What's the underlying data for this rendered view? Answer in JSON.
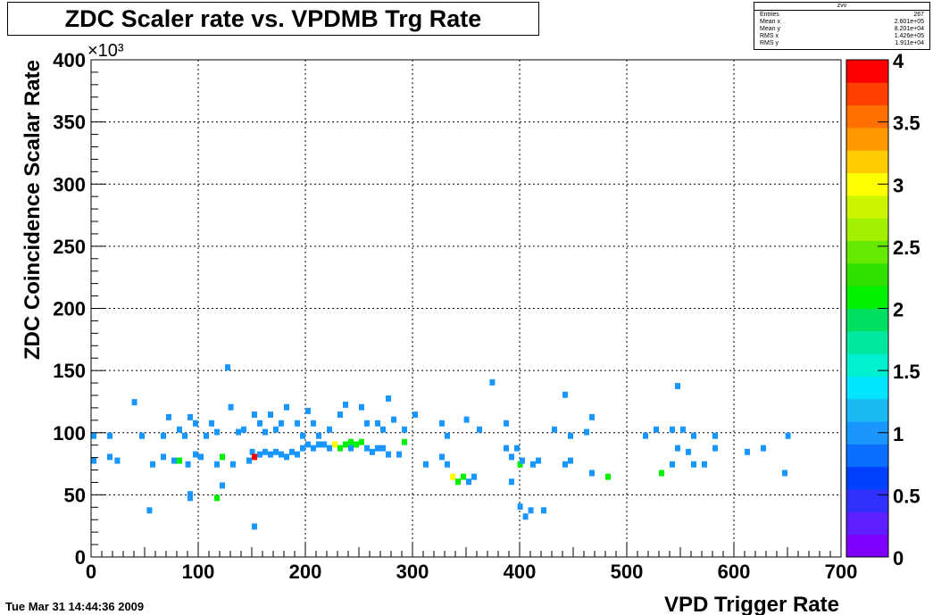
{
  "chart_data": {
    "type": "heatmap",
    "title": "ZDC Scaler rate vs. VPDMB Trg Rate",
    "xlabel": "VPD Trigger Rate",
    "ylabel": "ZDC Coincidence Scalar Rate",
    "y_multiplier": "×10³",
    "xlim": [
      0,
      700
    ],
    "ylim": [
      0,
      400000
    ],
    "x_ticks": [
      "0",
      "100",
      "200",
      "300",
      "400",
      "500",
      "600",
      "700"
    ],
    "y_ticks": [
      "0",
      "50",
      "100",
      "150",
      "200",
      "250",
      "300",
      "350",
      "400"
    ],
    "grid": true,
    "bin_width_x": 5,
    "bin_height_y": 5000,
    "z_range": [
      0,
      4
    ],
    "z_ticks": [
      "0",
      "0.5",
      "1",
      "1.5",
      "2",
      "2.5",
      "3",
      "3.5",
      "4"
    ],
    "palette": [
      "#7f00ff",
      "#5f20ff",
      "#3030ff",
      "#0040ff",
      "#0a6fff",
      "#1a96ff",
      "#18b8f2",
      "#00e4ff",
      "#00f0d0",
      "#00e8a0",
      "#00e060",
      "#00f000",
      "#30e000",
      "#66e800",
      "#a0f000",
      "#ccf400",
      "#ffff00",
      "#ffcc00",
      "#ff9900",
      "#ff7000",
      "#ff4000",
      "#ff0000"
    ],
    "bins": [
      [
        150,
        22000,
        1
      ],
      [
        52,
        35000,
        1
      ],
      [
        90,
        48000,
        1
      ],
      [
        90,
        45000,
        1
      ],
      [
        120,
        55000,
        1
      ],
      [
        115,
        45000,
        2
      ],
      [
        398,
        38000,
        1
      ],
      [
        403,
        30000,
        1
      ],
      [
        408,
        35000,
        1
      ],
      [
        420,
        35000,
        1
      ],
      [
        0,
        75000,
        1
      ],
      [
        15,
        78000,
        1
      ],
      [
        22,
        75000,
        1
      ],
      [
        55,
        72000,
        1
      ],
      [
        65,
        78000,
        1
      ],
      [
        75,
        75000,
        1
      ],
      [
        80,
        75000,
        2
      ],
      [
        88,
        72000,
        1
      ],
      [
        95,
        80000,
        1
      ],
      [
        100,
        78000,
        1
      ],
      [
        115,
        72000,
        1
      ],
      [
        120,
        78000,
        2
      ],
      [
        130,
        72000,
        1
      ],
      [
        145,
        75000,
        1
      ],
      [
        148,
        82000,
        1
      ],
      [
        150,
        78000,
        4
      ],
      [
        155,
        80000,
        1
      ],
      [
        160,
        82000,
        1
      ],
      [
        165,
        80000,
        1
      ],
      [
        170,
        82000,
        1
      ],
      [
        175,
        80000,
        1
      ],
      [
        180,
        78000,
        1
      ],
      [
        185,
        82000,
        1
      ],
      [
        190,
        80000,
        1
      ],
      [
        195,
        85000,
        1
      ],
      [
        200,
        88000,
        1
      ],
      [
        205,
        85000,
        1
      ],
      [
        210,
        88000,
        1
      ],
      [
        215,
        88000,
        1
      ],
      [
        220,
        85000,
        1
      ],
      [
        225,
        88000,
        3
      ],
      [
        230,
        85000,
        2
      ],
      [
        235,
        88000,
        2
      ],
      [
        240,
        90000,
        2
      ],
      [
        245,
        88000,
        2
      ],
      [
        250,
        90000,
        2
      ],
      [
        255,
        85000,
        1
      ],
      [
        260,
        82000,
        1
      ],
      [
        265,
        85000,
        1
      ],
      [
        270,
        85000,
        1
      ],
      [
        275,
        80000,
        1
      ],
      [
        285,
        80000,
        1
      ],
      [
        290,
        90000,
        2
      ],
      [
        310,
        72000,
        1
      ],
      [
        325,
        78000,
        1
      ],
      [
        330,
        72000,
        1
      ],
      [
        335,
        62000,
        3
      ],
      [
        340,
        58000,
        2
      ],
      [
        345,
        62000,
        2
      ],
      [
        350,
        58000,
        1
      ],
      [
        355,
        62000,
        1
      ],
      [
        385,
        85000,
        1
      ],
      [
        390,
        78000,
        1
      ],
      [
        395,
        85000,
        1
      ],
      [
        398,
        72000,
        2
      ],
      [
        390,
        58000,
        1
      ],
      [
        400,
        75000,
        1
      ],
      [
        410,
        72000,
        1
      ],
      [
        415,
        75000,
        1
      ],
      [
        440,
        72000,
        1
      ],
      [
        445,
        75000,
        1
      ],
      [
        465,
        65000,
        1
      ],
      [
        480,
        62000,
        2
      ],
      [
        530,
        65000,
        2
      ],
      [
        540,
        72000,
        1
      ],
      [
        545,
        85000,
        1
      ],
      [
        555,
        82000,
        1
      ],
      [
        560,
        72000,
        1
      ],
      [
        570,
        72000,
        1
      ],
      [
        580,
        85000,
        1
      ],
      [
        610,
        82000,
        1
      ],
      [
        625,
        85000,
        1
      ],
      [
        645,
        65000,
        1
      ],
      [
        0,
        95000,
        1
      ],
      [
        15,
        95000,
        1
      ],
      [
        38,
        122000,
        1
      ],
      [
        45,
        95000,
        1
      ],
      [
        65,
        95000,
        1
      ],
      [
        70,
        110000,
        1
      ],
      [
        80,
        100000,
        1
      ],
      [
        85,
        95000,
        1
      ],
      [
        105,
        95000,
        1
      ],
      [
        110,
        105000,
        1
      ],
      [
        115,
        98000,
        1
      ],
      [
        125,
        150000,
        1
      ],
      [
        128,
        118000,
        1
      ],
      [
        135,
        98000,
        1
      ],
      [
        140,
        100000,
        1
      ],
      [
        150,
        112000,
        1
      ],
      [
        155,
        105000,
        1
      ],
      [
        160,
        98000,
        1
      ],
      [
        165,
        112000,
        1
      ],
      [
        170,
        100000,
        1
      ],
      [
        175,
        105000,
        1
      ],
      [
        180,
        118000,
        1
      ],
      [
        190,
        105000,
        1
      ],
      [
        195,
        95000,
        1
      ],
      [
        200,
        115000,
        1
      ],
      [
        205,
        105000,
        1
      ],
      [
        210,
        95000,
        1
      ],
      [
        220,
        100000,
        1
      ],
      [
        230,
        112000,
        1
      ],
      [
        235,
        120000,
        1
      ],
      [
        250,
        118000,
        1
      ],
      [
        255,
        105000,
        1
      ],
      [
        265,
        105000,
        1
      ],
      [
        270,
        100000,
        1
      ],
      [
        275,
        125000,
        1
      ],
      [
        280,
        108000,
        1
      ],
      [
        290,
        100000,
        1
      ],
      [
        300,
        112000,
        1
      ],
      [
        325,
        105000,
        1
      ],
      [
        330,
        95000,
        1
      ],
      [
        348,
        108000,
        1
      ],
      [
        360,
        100000,
        1
      ],
      [
        372,
        138000,
        1
      ],
      [
        385,
        105000,
        1
      ],
      [
        430,
        100000,
        1
      ],
      [
        440,
        128000,
        1
      ],
      [
        445,
        95000,
        1
      ],
      [
        460,
        98000,
        1
      ],
      [
        465,
        110000,
        1
      ],
      [
        515,
        95000,
        1
      ],
      [
        525,
        100000,
        1
      ],
      [
        540,
        100000,
        1
      ],
      [
        545,
        135000,
        1
      ],
      [
        550,
        100000,
        1
      ],
      [
        560,
        95000,
        1
      ],
      [
        580,
        95000,
        1
      ],
      [
        648,
        95000,
        1
      ],
      [
        90,
        110000,
        1
      ],
      [
        95,
        105000,
        1
      ],
      [
        240,
        85000,
        1
      ]
    ]
  },
  "stats_box": {
    "title": "zvv",
    "rows": [
      {
        "label": "Entries",
        "value": "267"
      },
      {
        "label": "Mean x",
        "value": "2.601e+05"
      },
      {
        "label": "Mean y",
        "value": "8.201e+04"
      },
      {
        "label": "RMS x",
        "value": "1.426e+05"
      },
      {
        "label": "RMS y",
        "value": "1.911e+04"
      }
    ]
  },
  "timestamp": "Tue Mar 31 14:44:36 2009"
}
